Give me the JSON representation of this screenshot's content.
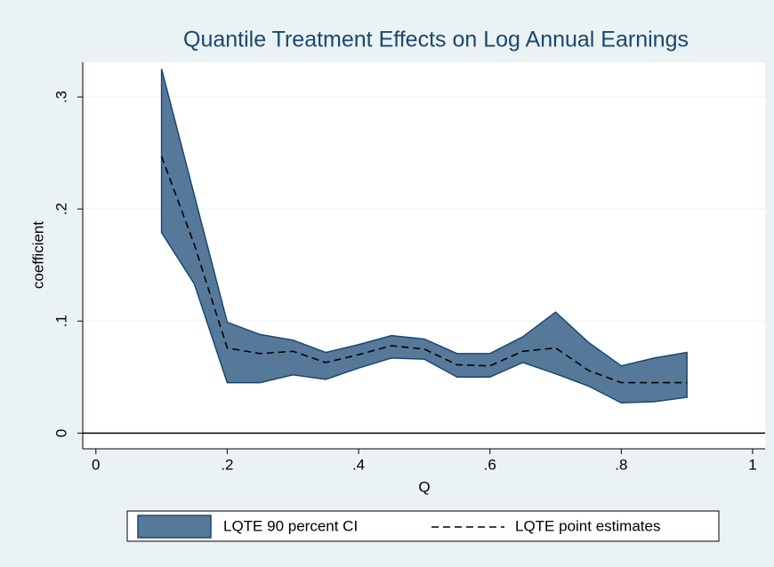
{
  "chart_data": {
    "type": "band-line",
    "title": "Quantile Treatment Effects on Log Annual Earnings",
    "x_label": "Q",
    "y_label": "coefficient",
    "x": [
      0.1,
      0.15,
      0.2,
      0.25,
      0.3,
      0.35,
      0.4,
      0.45,
      0.5,
      0.55,
      0.6,
      0.65,
      0.7,
      0.75,
      0.8,
      0.85,
      0.9
    ],
    "series": [
      {
        "name": "LQTE 90 percent CI",
        "kind": "band",
        "color": "#56799a",
        "edge_color": "#1a476f",
        "upper": [
          0.325,
          0.212,
          0.099,
          0.088,
          0.083,
          0.072,
          0.079,
          0.087,
          0.084,
          0.071,
          0.071,
          0.086,
          0.108,
          0.081,
          0.06,
          0.067,
          0.072
        ],
        "lower": [
          0.179,
          0.133,
          0.045,
          0.045,
          0.052,
          0.048,
          0.058,
          0.067,
          0.066,
          0.05,
          0.05,
          0.063,
          0.053,
          0.042,
          0.027,
          0.028,
          0.032
        ]
      },
      {
        "name": "LQTE point estimates",
        "kind": "line",
        "color": "#000000",
        "dashed": true,
        "values": [
          0.247,
          0.168,
          0.076,
          0.071,
          0.073,
          0.063,
          0.07,
          0.078,
          0.075,
          0.061,
          0.06,
          0.073,
          0.076,
          0.056,
          0.045,
          0.045,
          0.045
        ]
      }
    ],
    "xlim": [
      -0.02,
      1.019
    ],
    "ylim": [
      -0.014,
      0.331
    ],
    "xticks": [
      0,
      {
        "value": 0.2,
        "label": ".2"
      },
      {
        "value": 0.4,
        "label": ".4"
      },
      {
        "value": 0.6,
        "label": ".6"
      },
      {
        "value": 0.8,
        "label": ".8"
      },
      1
    ],
    "yticks": [
      0,
      {
        "value": 0.1,
        "label": ".1"
      },
      {
        "value": 0.2,
        "label": ".2"
      },
      {
        "value": 0.3,
        "label": ".3"
      }
    ],
    "hline": 0,
    "grid": true
  }
}
